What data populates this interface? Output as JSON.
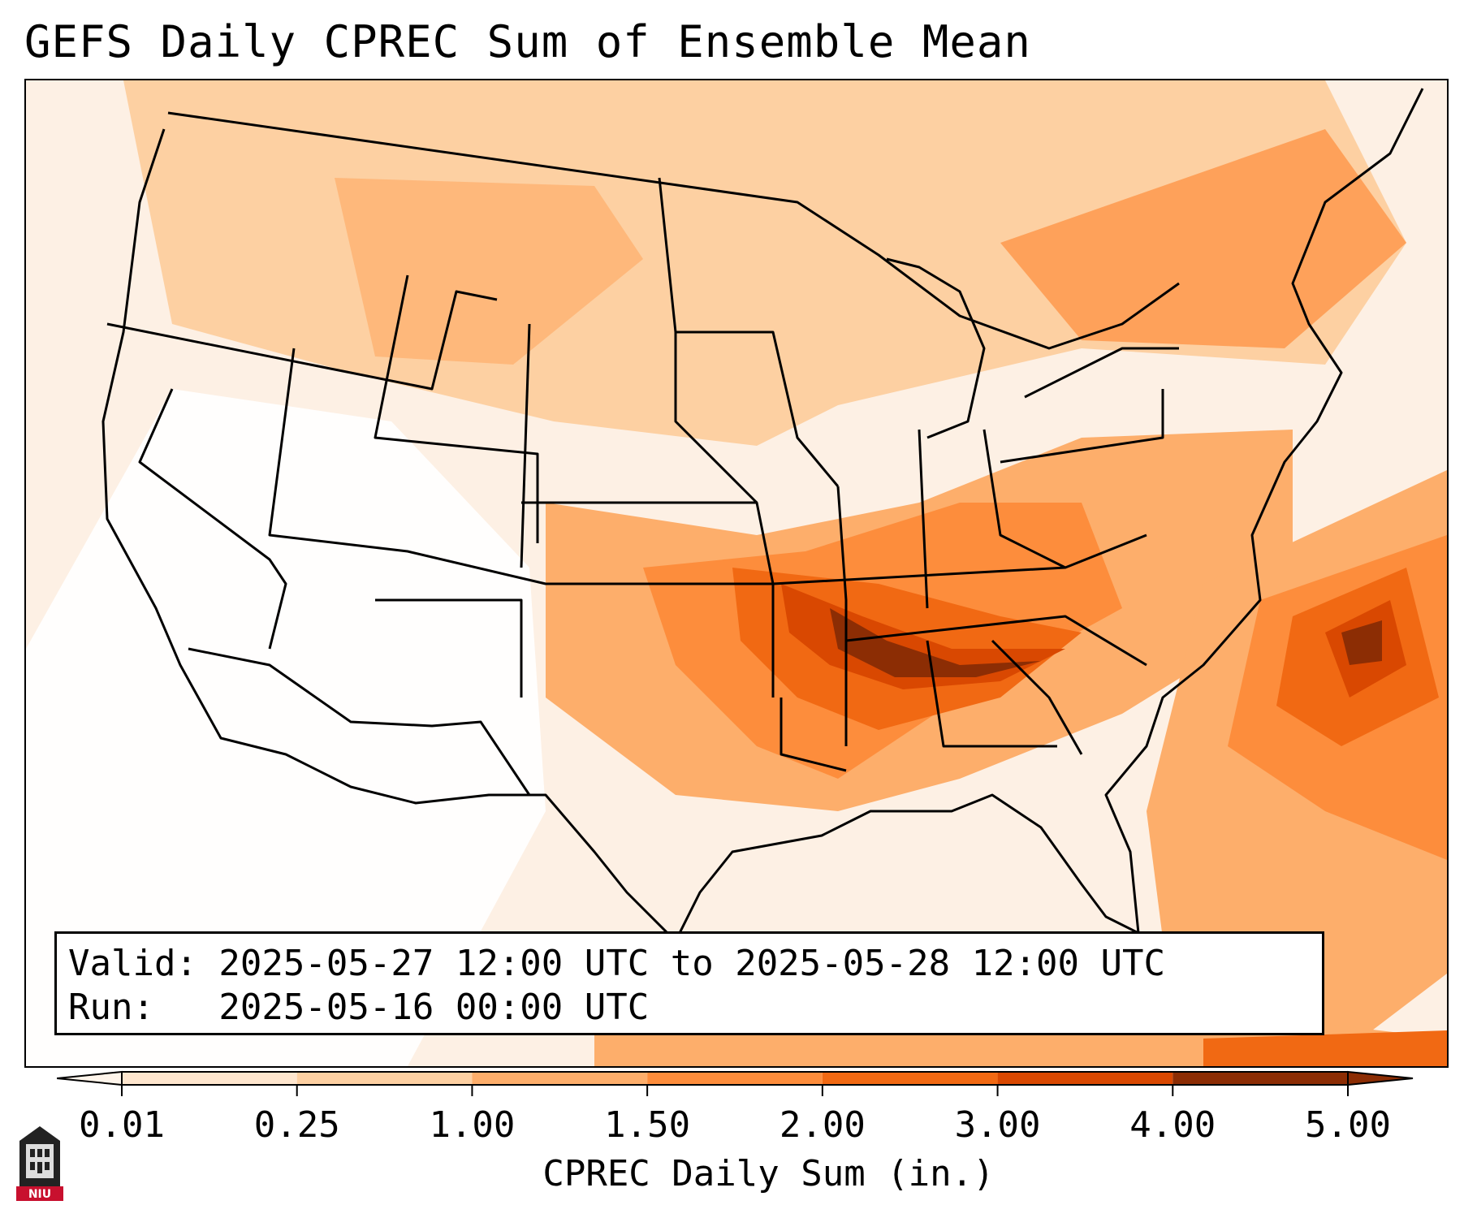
{
  "title": "GEFS Daily CPREC Sum of Ensemble Mean",
  "info": {
    "valid_label": "Valid: 2025-05-27 12:00 UTC to 2025-05-28 12:00 UTC",
    "run_label": "Run:   2025-05-16 00:00 UTC"
  },
  "colorbar": {
    "label": "CPREC Daily Sum (in.)",
    "ticks": [
      "0.01",
      "0.25",
      "1.00",
      "1.50",
      "2.00",
      "3.00",
      "4.00",
      "5.00"
    ],
    "colors": [
      "#fff5eb",
      "#fee6ce",
      "#fdd0a2",
      "#fdae6b",
      "#fd8d3c",
      "#f16913",
      "#d94801",
      "#8c2d04"
    ],
    "extend": "both"
  },
  "logo": {
    "text": "NIU",
    "icon": "niu-logo-icon"
  },
  "map": {
    "projection": "Lambert conformal",
    "region": "Contiguous United States",
    "field": "CPREC daily sum",
    "maxima_region": "Mid-South / Tennessee Valley and western Atlantic"
  }
}
